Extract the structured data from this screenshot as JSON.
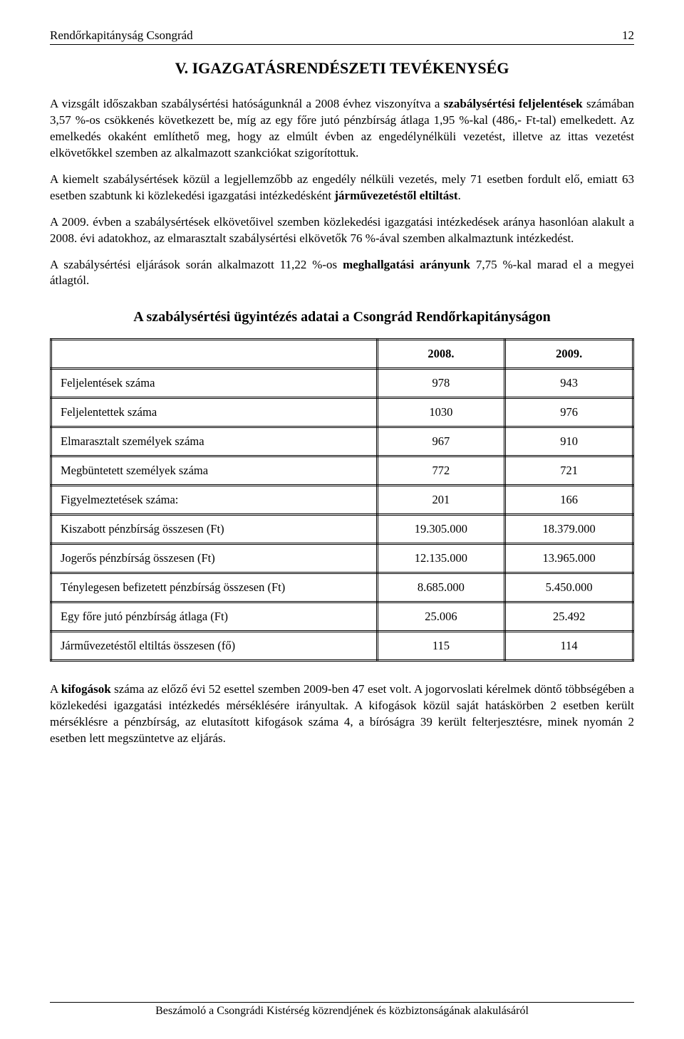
{
  "header": {
    "left": "Rendőrkapitányság Csongrád",
    "page_number": "12"
  },
  "chapter_title": "V. IGAZGATÁSRENDÉSZETI TEVÉKENYSÉG",
  "paragraphs": {
    "p1_a": "A vizsgált időszakban szabálysértési hatóságunknál a 2008 évhez viszonyítva a ",
    "p1_b_bold": "szabálysértési feljelentések",
    "p1_c": " számában 3,57 %-os csökkenés következett be, míg az egy főre jutó pénzbírság átlaga 1,95 %-kal (486,- Ft-tal) emelkedett. Az emelkedés okaként említhető meg, hogy az elmúlt évben az engedélynélküli vezetést, illetve az ittas vezetést elkövetőkkel szemben az alkalmazott szankciókat szigorítottuk.",
    "p2_a": "A kiemelt szabálysértések közül a legjellemzőbb az engedély nélküli vezetés, mely 71 esetben fordult elő, emiatt 63 esetben szabtunk ki közlekedési igazgatási intézkedésként ",
    "p2_b_bold": "járművezetéstől eltiltást",
    "p2_c": ".",
    "p3": "A 2009. évben a szabálysértések elkövetőivel szemben közlekedési igazgatási intézkedések aránya hasonlóan alakult a 2008. évi adatokhoz, az elmarasztalt szabálysértési elkövetők 76 %-ával szemben alkalmaztunk intézkedést.",
    "p4_a": "A szabálysértési eljárások során alkalmazott 11,22 %-os ",
    "p4_b_bold": "meghallgatási arányunk",
    "p4_c": " 7,75 %-kal marad el a megyei átlagtól.",
    "p5_a": "A ",
    "p5_b_bold": "kifogások",
    "p5_c": " száma az előző évi 52 esettel szemben 2009-ben 47 eset volt. A jogorvoslati kérelmek döntő többségében a közlekedési igazgatási intézkedés mérséklésére irányultak. A kifogások közül saját hatáskörben 2 esetben került mérséklésre a pénzbírság, az elutasított kifogások száma 4, a bíróságra 39 került felterjesztésre, minek nyomán 2 esetben lett megszüntetve az eljárás."
  },
  "table": {
    "title": "A szabálysértési ügyintézés adatai a Csongrád Rendőrkapitányságon",
    "col_headers": [
      "",
      "2008.",
      "2009."
    ],
    "rows": [
      {
        "label": "Feljelentések száma",
        "v2008": "978",
        "v2009": "943"
      },
      {
        "label": "Feljelentettek száma",
        "v2008": "1030",
        "v2009": "976"
      },
      {
        "label": "Elmarasztalt személyek száma",
        "v2008": "967",
        "v2009": "910"
      },
      {
        "label": "Megbüntetett személyek száma",
        "v2008": "772",
        "v2009": "721"
      },
      {
        "label": "Figyelmeztetések száma:",
        "v2008": "201",
        "v2009": "166"
      },
      {
        "label": "Kiszabott pénzbírság összesen (Ft)",
        "v2008": "19.305.000",
        "v2009": "18.379.000"
      },
      {
        "label": "Jogerős pénzbírság összesen (Ft)",
        "v2008": "12.135.000",
        "v2009": "13.965.000"
      },
      {
        "label": "Ténylegesen befizetett pénzbírság összesen (Ft)",
        "v2008": "8.685.000",
        "v2009": "5.450.000"
      },
      {
        "label": "Egy főre jutó pénzbírság átlaga (Ft)",
        "v2008": "25.006",
        "v2009": "25.492"
      },
      {
        "label": "Járművezetéstől eltiltás összesen (fő)",
        "v2008": "115",
        "v2009": "114"
      }
    ],
    "styles": {
      "border_color": "#000000",
      "font_size_pt": 12,
      "header_align": "center",
      "label_align": "left",
      "value_align": "center"
    }
  },
  "footer": {
    "text": "Beszámoló a Csongrádi Kistérség közrendjének és közbiztonságának alakulásáról"
  }
}
